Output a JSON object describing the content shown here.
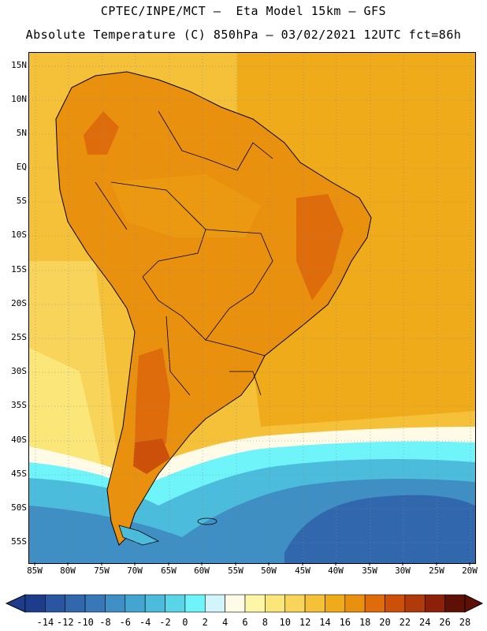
{
  "header": {
    "line1": "CPTEC/INPE/MCT –  Eta Model 15km – GFS",
    "line2": "Absolute Temperature (C) 850hPa – 03/02/2021 12UTC fct=86h"
  },
  "map": {
    "lat_labels": [
      "15N",
      "10N",
      "5N",
      "EQ",
      "5S",
      "10S",
      "15S",
      "20S",
      "25S",
      "30S",
      "35S",
      "40S",
      "45S",
      "50S",
      "55S"
    ],
    "lon_labels": [
      "85W",
      "80W",
      "75W",
      "70W",
      "65W",
      "60W",
      "55W",
      "50W",
      "45W",
      "40W",
      "35W",
      "30W",
      "25W",
      "20W"
    ]
  },
  "legend": {
    "labels": [
      "-14",
      "-12",
      "-10",
      "-8",
      "-6",
      "-4",
      "-2",
      "0",
      "2",
      "4",
      "6",
      "8",
      "10",
      "12",
      "14",
      "16",
      "18",
      "20",
      "22",
      "24",
      "26",
      "28"
    ],
    "colors": [
      "#1e3c8c",
      "#2a55a0",
      "#3067ad",
      "#3878b8",
      "#3f8ec4",
      "#45a5d1",
      "#4cbcdc",
      "#5ad5e8",
      "#6ff4fa",
      "#d2f5fc",
      "#fffbe6",
      "#fcf6a6",
      "#fbe67a",
      "#f8d55a",
      "#f4c138",
      "#f0ab1a",
      "#ea900f",
      "#de6c0b",
      "#cc4f0a",
      "#b03a0a",
      "#8c2008",
      "#5f1005"
    ]
  }
}
